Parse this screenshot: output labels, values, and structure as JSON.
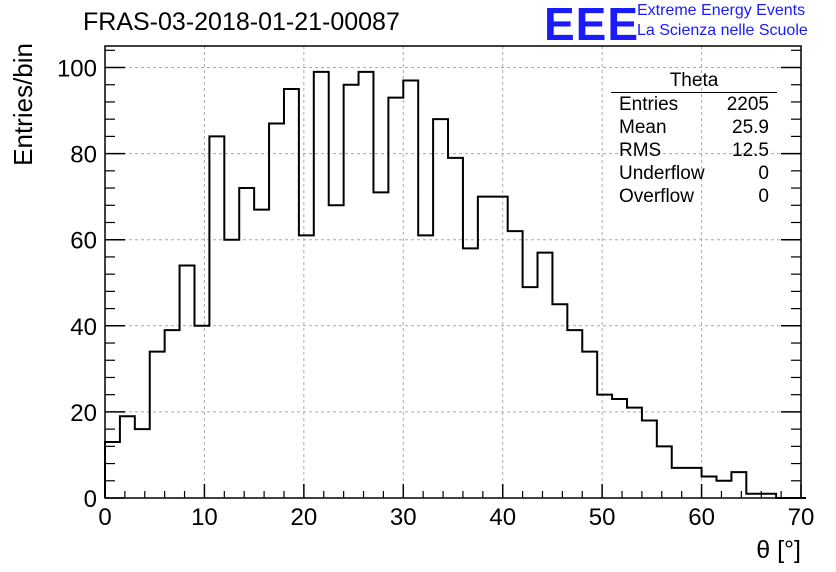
{
  "header": {
    "title": "FRAS-03-2018-01-21-00087",
    "logo_text": "EEE",
    "logo_line1": "Extreme Energy Events",
    "logo_line2": "La Scienza nelle Scuole"
  },
  "stats": {
    "title": "Theta",
    "rows": [
      {
        "label": "Entries",
        "value": "2205"
      },
      {
        "label": "Mean",
        "value": "25.9"
      },
      {
        "label": "RMS",
        "value": "12.5"
      },
      {
        "label": "Underflow",
        "value": "0"
      },
      {
        "label": "Overflow",
        "value": "0"
      }
    ]
  },
  "colors": {
    "line": "#000000",
    "grid": "#aaaaaa",
    "logo": "#1a1aff"
  },
  "chart_data": {
    "type": "histogram",
    "xlabel": "θ [°]",
    "ylabel": "Entries/bin",
    "xlim": [
      0,
      70
    ],
    "ylim": [
      0,
      105
    ],
    "bin_width": 1.5,
    "x_ticks": [
      0,
      10,
      20,
      30,
      40,
      50,
      60,
      70
    ],
    "y_ticks": [
      0,
      20,
      40,
      60,
      80,
      100
    ],
    "grid": true,
    "legend": "stats box top-right",
    "values": [
      13,
      19,
      16,
      34,
      39,
      54,
      40,
      84,
      60,
      72,
      67,
      87,
      95,
      61,
      99,
      68,
      96,
      99,
      71,
      93,
      97,
      61,
      88,
      79,
      58,
      70,
      70,
      62,
      49,
      57,
      45,
      39,
      34,
      24,
      23,
      21,
      18,
      12,
      7,
      7,
      5,
      4,
      6,
      1,
      1,
      0,
      0
    ]
  }
}
